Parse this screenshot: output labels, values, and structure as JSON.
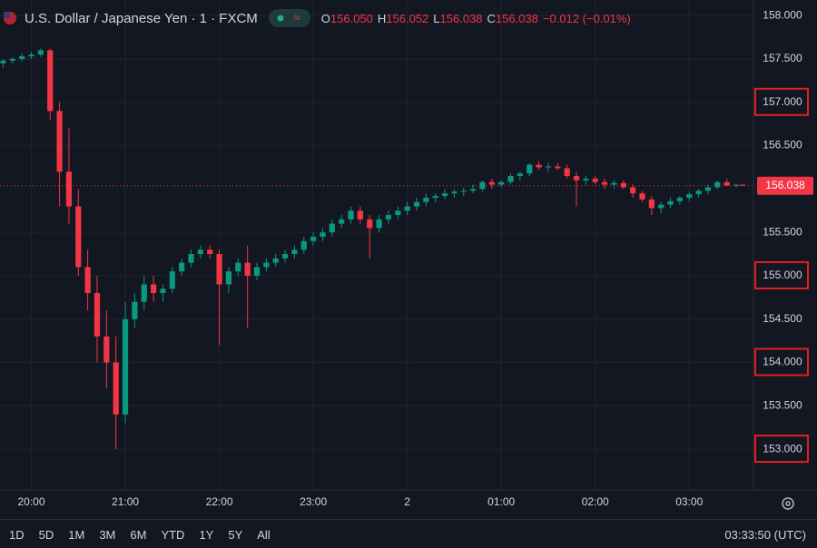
{
  "chart_data": {
    "type": "candlestick",
    "legend": {
      "symbol": "U.S. Dollar / Japanese Yen · 1 · FXCM",
      "ohlc": [
        {
          "key": "O",
          "value": "156.050"
        },
        {
          "key": "H",
          "value": "156.052"
        },
        {
          "key": "L",
          "value": "156.038"
        },
        {
          "key": "C",
          "value": "156.038"
        }
      ],
      "change": "−0.012 (−0.01%)"
    },
    "up_color": "#089981",
    "down_color": "#f23645",
    "x": [
      1182,
      1188,
      1194,
      1200,
      1206,
      1212,
      1218,
      1224,
      1230,
      1236,
      1242,
      1248,
      1254,
      1260,
      1266,
      1272,
      1278,
      1284,
      1290,
      1296,
      1302,
      1308,
      1314,
      1320,
      1326,
      1332,
      1338,
      1344,
      1350,
      1356,
      1362,
      1368,
      1374,
      1380,
      1386,
      1392,
      1398,
      1404,
      1410,
      1416,
      1422,
      1428,
      1434,
      1440,
      1446,
      1452,
      1458,
      1464,
      1470,
      1476,
      1482,
      1488,
      1494,
      1500,
      1506,
      1512,
      1518,
      1524,
      1530,
      1536,
      1542,
      1548,
      1554,
      1560,
      1566,
      1572,
      1578,
      1584,
      1590,
      1596,
      1602,
      1608,
      1614,
      1620,
      1626,
      1632,
      1638,
      1644,
      1650,
      1654
    ],
    "open": [
      157.45,
      157.48,
      157.5,
      157.53,
      157.55,
      157.6,
      156.9,
      156.2,
      155.8,
      155.1,
      154.8,
      154.3,
      154.0,
      153.4,
      154.5,
      154.7,
      154.9,
      154.8,
      154.85,
      155.05,
      155.15,
      155.25,
      155.3,
      155.25,
      154.9,
      155.05,
      155.15,
      155.0,
      155.1,
      155.15,
      155.2,
      155.25,
      155.3,
      155.4,
      155.45,
      155.5,
      155.6,
      155.65,
      155.75,
      155.65,
      155.55,
      155.65,
      155.7,
      155.75,
      155.8,
      155.85,
      155.9,
      155.92,
      155.95,
      155.97,
      155.98,
      156.0,
      156.08,
      156.05,
      156.08,
      156.15,
      156.18,
      156.28,
      156.25,
      156.26,
      156.24,
      156.15,
      156.1,
      156.12,
      156.08,
      156.05,
      156.07,
      156.02,
      155.95,
      155.88,
      155.78,
      155.82,
      155.86,
      155.9,
      155.94,
      155.98,
      156.02,
      156.08,
      156.04,
      156.05
    ],
    "high": [
      157.5,
      157.52,
      157.56,
      157.58,
      157.62,
      157.62,
      157.0,
      156.7,
      156.0,
      155.3,
      155.0,
      154.6,
      154.3,
      154.7,
      154.8,
      155.0,
      155.0,
      154.9,
      155.1,
      155.2,
      155.3,
      155.35,
      155.35,
      155.3,
      155.1,
      155.2,
      155.35,
      155.15,
      155.2,
      155.25,
      155.3,
      155.35,
      155.45,
      155.5,
      155.55,
      155.65,
      155.7,
      155.8,
      155.8,
      155.7,
      155.7,
      155.75,
      155.8,
      155.85,
      155.9,
      155.95,
      155.95,
      156.0,
      156.0,
      156.02,
      156.05,
      156.1,
      156.12,
      156.1,
      156.18,
      156.2,
      156.3,
      156.32,
      156.3,
      156.3,
      156.28,
      156.2,
      156.15,
      156.15,
      156.12,
      156.1,
      156.1,
      156.05,
      155.98,
      155.92,
      155.85,
      155.9,
      155.92,
      155.96,
      156.0,
      156.05,
      156.1,
      156.12,
      156.06,
      156.052
    ],
    "low": [
      157.4,
      157.44,
      157.47,
      157.5,
      157.52,
      156.8,
      155.8,
      155.6,
      155.0,
      154.6,
      154.0,
      153.7,
      153.0,
      153.3,
      154.4,
      154.6,
      154.7,
      154.7,
      154.8,
      155.0,
      155.1,
      155.2,
      155.2,
      154.2,
      154.8,
      155.0,
      154.4,
      154.95,
      155.05,
      155.1,
      155.15,
      155.2,
      155.25,
      155.35,
      155.4,
      155.45,
      155.55,
      155.6,
      155.6,
      155.2,
      155.5,
      155.6,
      155.65,
      155.7,
      155.75,
      155.8,
      155.85,
      155.88,
      155.9,
      155.92,
      155.95,
      155.97,
      156.0,
      156.02,
      156.05,
      156.1,
      156.15,
      156.22,
      156.2,
      156.22,
      156.12,
      155.8,
      156.05,
      156.05,
      156.0,
      156.0,
      156.0,
      155.9,
      155.85,
      155.7,
      155.72,
      155.78,
      155.82,
      155.86,
      155.9,
      155.94,
      156.0,
      156.03,
      156.02,
      156.038
    ],
    "close": [
      157.48,
      157.5,
      157.53,
      157.55,
      157.6,
      156.9,
      156.2,
      155.8,
      155.1,
      154.8,
      154.3,
      154.0,
      153.4,
      154.5,
      154.7,
      154.9,
      154.8,
      154.85,
      155.05,
      155.15,
      155.25,
      155.3,
      155.25,
      154.9,
      155.05,
      155.15,
      155.0,
      155.1,
      155.15,
      155.2,
      155.25,
      155.3,
      155.4,
      155.45,
      155.5,
      155.6,
      155.65,
      155.75,
      155.65,
      155.55,
      155.65,
      155.7,
      155.75,
      155.8,
      155.85,
      155.9,
      155.92,
      155.95,
      155.97,
      155.98,
      156.0,
      156.08,
      156.05,
      156.08,
      156.15,
      156.18,
      156.28,
      156.25,
      156.26,
      156.24,
      156.15,
      156.1,
      156.12,
      156.08,
      156.05,
      156.07,
      156.02,
      155.95,
      155.88,
      155.78,
      155.82,
      155.86,
      155.9,
      155.94,
      155.98,
      156.02,
      156.08,
      156.04,
      156.05,
      156.038
    ],
    "xlim": [
      1180,
      1661
    ],
    "xticks": [
      {
        "value": 1200,
        "label": "20:00"
      },
      {
        "value": 1260,
        "label": "21:00"
      },
      {
        "value": 1320,
        "label": "22:00"
      },
      {
        "value": 1380,
        "label": "23:00"
      },
      {
        "value": 1440,
        "label": "2"
      },
      {
        "value": 1500,
        "label": "01:00"
      },
      {
        "value": 1560,
        "label": "02:00"
      },
      {
        "value": 1620,
        "label": "03:00"
      }
    ],
    "ylim": [
      152.53,
      158.18
    ],
    "yticks": [
      {
        "value": 153,
        "label": "153.000",
        "highlight": true
      },
      {
        "value": 153.5,
        "label": "153.500"
      },
      {
        "value": 154,
        "label": "154.000",
        "highlight": true
      },
      {
        "value": 154.5,
        "label": "154.500"
      },
      {
        "value": 155,
        "label": "155.000",
        "highlight": true
      },
      {
        "value": 155.5,
        "label": "155.500"
      },
      {
        "value": 156.5,
        "label": "156.500"
      },
      {
        "value": 157,
        "label": "157.000",
        "highlight": true
      },
      {
        "value": 157.5,
        "label": "157.500"
      },
      {
        "value": 158,
        "label": "158.000"
      }
    ],
    "last_price": {
      "value": 156.038,
      "label": "156.038"
    },
    "grid": true,
    "ranges": [
      "1D",
      "5D",
      "1M",
      "3M",
      "6M",
      "YTD",
      "1Y",
      "5Y",
      "All"
    ],
    "clock": "03:33:50 (UTC)"
  }
}
